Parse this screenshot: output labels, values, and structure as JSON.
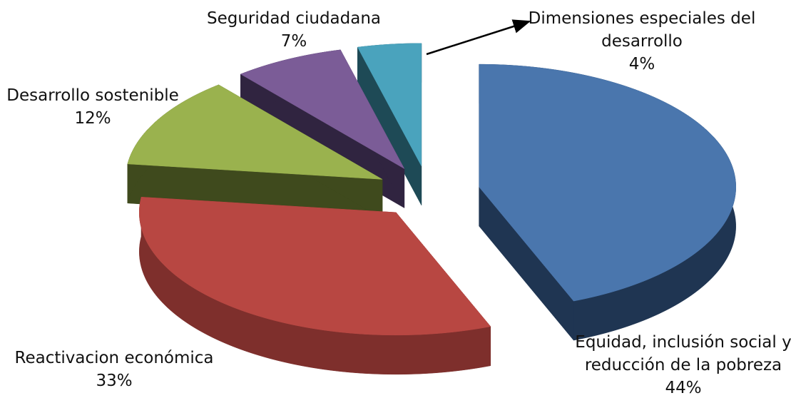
{
  "chart_data": {
    "type": "pie",
    "categories": [
      "Equidad, inclusión social y reducción de la pobreza",
      "Reactivacion económica",
      "Desarrollo sostenible",
      "Seguridad ciudadana",
      "Dimensiones especiales del desarrollo"
    ],
    "values": [
      44,
      33,
      12,
      7,
      4
    ],
    "value_labels": [
      "44%",
      "33%",
      "12%",
      "7%",
      "4%"
    ],
    "colors": [
      "#4a76ad",
      "#b84742",
      "#9ab24e",
      "#7b5c97",
      "#4aa3bd"
    ]
  }
}
